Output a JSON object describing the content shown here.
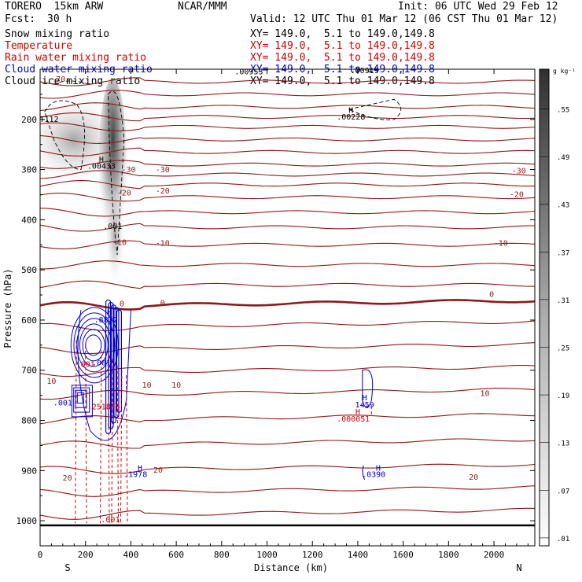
{
  "header": {
    "model": "TORERO  15km ARW",
    "org": "NCAR/MMM",
    "init": "Init: 06 UTC Wed 29 Feb 12",
    "fcst_label": "Fcst:",
    "fcst_value": "30 h",
    "valid": "Valid: 12 UTC Thu 01 Mar 12 (06 CST Thu 01 Mar 12)"
  },
  "fields": [
    {
      "label": "Snow mixing ratio",
      "xy": "XY= 149.0,  5.1 to 149.0,149.8",
      "color": "#000000"
    },
    {
      "label": "Temperature",
      "xy": "XY= 149.0,  5.1 to 149.0,149.8",
      "color": "#cc0000"
    },
    {
      "label": "Rain water mixing ratio",
      "xy": "XY= 149.0,  5.1 to 149.0,149.8",
      "color": "#cc0000"
    },
    {
      "label": "Cloud water mixing ratio",
      "xy": "XY= 149.0,  5.1 to 149.0,149.8",
      "color": "#0000cc"
    },
    {
      "label": "Cloud ice mixing ratio",
      "xy": "XY= 149.0,  5.1 to 149.0,149.8",
      "color": "#000000"
    }
  ],
  "chart_data": {
    "type": "cross-section",
    "xlabel": "Distance (km)",
    "ylabel": "Pressure (hPa)",
    "x_ticks": [
      "0",
      "200",
      "400",
      "600",
      "800",
      "1000",
      "1200",
      "1400",
      "1600",
      "1800",
      "2000"
    ],
    "x_ticks_values": [
      0,
      200,
      400,
      600,
      800,
      1000,
      1200,
      1400,
      1600,
      1800,
      2000
    ],
    "y_ticks": [
      "200",
      "300",
      "400",
      "500",
      "600",
      "700",
      "800",
      "900",
      "1000"
    ],
    "y_ticks_values": [
      200,
      300,
      400,
      500,
      600,
      700,
      800,
      900,
      1000
    ],
    "xlim": [
      0,
      2180
    ],
    "ylim": [
      1050,
      100
    ],
    "left_end": "S",
    "right_end": "N",
    "colorbar": {
      "unit": "g kg⁻¹",
      "labels": [
        ".55",
        ".49",
        ".43",
        ".37",
        ".31",
        ".25",
        ".19",
        ".13",
        ".07",
        ".01"
      ],
      "values": [
        0.55,
        0.49,
        0.43,
        0.37,
        0.31,
        0.25,
        0.19,
        0.13,
        0.07,
        0.01
      ]
    },
    "temperature_labels": [
      {
        "text": "-70",
        "x": 80,
        "p": 125
      },
      {
        "text": "-30",
        "x": 390,
        "p": 305
      },
      {
        "text": "-30",
        "x": 540,
        "p": 305
      },
      {
        "text": "-30",
        "x": 2110,
        "p": 308
      },
      {
        "text": "-20",
        "x": 370,
        "p": 352
      },
      {
        "text": "-20",
        "x": 540,
        "p": 348
      },
      {
        "text": "-20",
        "x": 2100,
        "p": 355
      },
      {
        "text": "-10",
        "x": 350,
        "p": 450
      },
      {
        "text": "-10",
        "x": 540,
        "p": 452
      },
      {
        "text": "-10",
        "x": 2030,
        "p": 452
      },
      {
        "text": "0",
        "x": 360,
        "p": 573
      },
      {
        "text": "0",
        "x": 540,
        "p": 571
      },
      {
        "text": "0",
        "x": 1990,
        "p": 554
      },
      {
        "text": "10",
        "x": 50,
        "p": 727
      },
      {
        "text": "10",
        "x": 470,
        "p": 735
      },
      {
        "text": "10",
        "x": 600,
        "p": 735
      },
      {
        "text": "10",
        "x": 1960,
        "p": 751
      },
      {
        "text": "20",
        "x": 120,
        "p": 920
      },
      {
        "text": "20",
        "x": 520,
        "p": 904
      },
      {
        "text": "20",
        "x": 1910,
        "p": 918
      }
    ],
    "snow_labels": [
      {
        "text": "H",
        "x": 270,
        "p": 285
      },
      {
        "text": ".00433",
        "x": 270,
        "p": 298
      },
      {
        "text": ".001",
        "x": 320,
        "p": 418
      }
    ],
    "ice_labels": [
      {
        "text": "T112",
        "x": 40,
        "p": 205
      },
      {
        "text": "H",
        "x": 1370,
        "p": 187
      },
      {
        "text": ".00228",
        "x": 1370,
        "p": 200
      },
      {
        "text": ".00953",
        "x": 920,
        "p": 110
      },
      {
        "text": ".00919",
        "x": 1430,
        "p": 108
      }
    ],
    "cloud_water_labels": [
      {
        "text": "H",
        "x": 305,
        "p": 590
      },
      {
        "text": ".8822",
        "x": 290,
        "p": 605
      },
      {
        "text": ".001",
        "x": 270,
        "p": 690
      },
      {
        "text": ".001",
        "x": 100,
        "p": 770
      },
      {
        "text": "H",
        "x": 1430,
        "p": 760
      },
      {
        "text": "1459",
        "x": 1430,
        "p": 774
      },
      {
        "text": "H",
        "x": 440,
        "p": 900
      },
      {
        "text": ".1978",
        "x": 420,
        "p": 913
      },
      {
        "text": "H",
        "x": 1490,
        "p": 900
      },
      {
        "text": ".0390",
        "x": 1470,
        "p": 913
      }
    ],
    "rain_labels": [
      {
        "text": ".001",
        "x": 200,
        "p": 693
      },
      {
        "text": ".251875",
        "x": 280,
        "p": 778
      },
      {
        "text": "H",
        "x": 1400,
        "p": 788
      },
      {
        "text": ".000051",
        "x": 1380,
        "p": 802
      },
      {
        "text": ".001",
        "x": 310,
        "p": 1003
      }
    ],
    "temperature_isotherms_surface_line": 1010
  }
}
